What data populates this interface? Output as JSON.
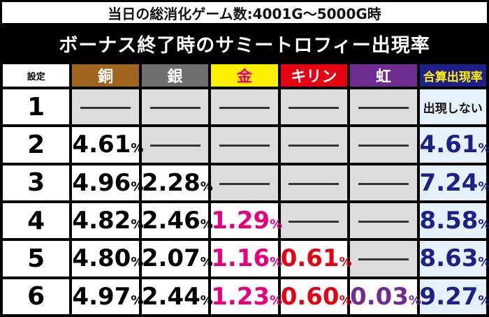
{
  "subtitle": "当日の総消化ゲーム数:4001G～5000G時",
  "title": "ボーナス終了時のサミートロフィー出現率",
  "headers": {
    "setting": "設定",
    "copper": "銅",
    "silver": "銀",
    "gold": "金",
    "kirin": "キリン",
    "rainbow": "虹",
    "total": "合算出現率"
  },
  "percent_sign": "%",
  "rows": [
    {
      "setting": "1",
      "copper": null,
      "silver": null,
      "gold": null,
      "kirin": null,
      "rainbow": null,
      "total": "出現しない"
    },
    {
      "setting": "2",
      "copper": "4.61",
      "silver": null,
      "gold": null,
      "kirin": null,
      "rainbow": null,
      "total": "4.61"
    },
    {
      "setting": "3",
      "copper": "4.96",
      "silver": "2.28",
      "gold": null,
      "kirin": null,
      "rainbow": null,
      "total": "7.24"
    },
    {
      "setting": "4",
      "copper": "4.82",
      "silver": "2.46",
      "gold": "1.29",
      "kirin": null,
      "rainbow": null,
      "total": "8.58"
    },
    {
      "setting": "5",
      "copper": "4.80",
      "silver": "2.07",
      "gold": "1.16",
      "kirin": "0.61",
      "rainbow": null,
      "total": "8.63"
    },
    {
      "setting": "6",
      "copper": "4.97",
      "silver": "2.44",
      "gold": "1.23",
      "kirin": "0.60",
      "rainbow": "0.03",
      "total": "9.27"
    }
  ],
  "colors": {
    "copper": "#a0641e",
    "silver": "#6e6e6e",
    "gold": "#ffef00",
    "gold_text": "#e6007e",
    "kirin": "#e60012",
    "rainbow": "#6f2c91",
    "total_header": "#1d2088",
    "total_text": "#1d2088",
    "empty_cell": "#dcdcdc",
    "total_cell": "#e6f2fb"
  }
}
